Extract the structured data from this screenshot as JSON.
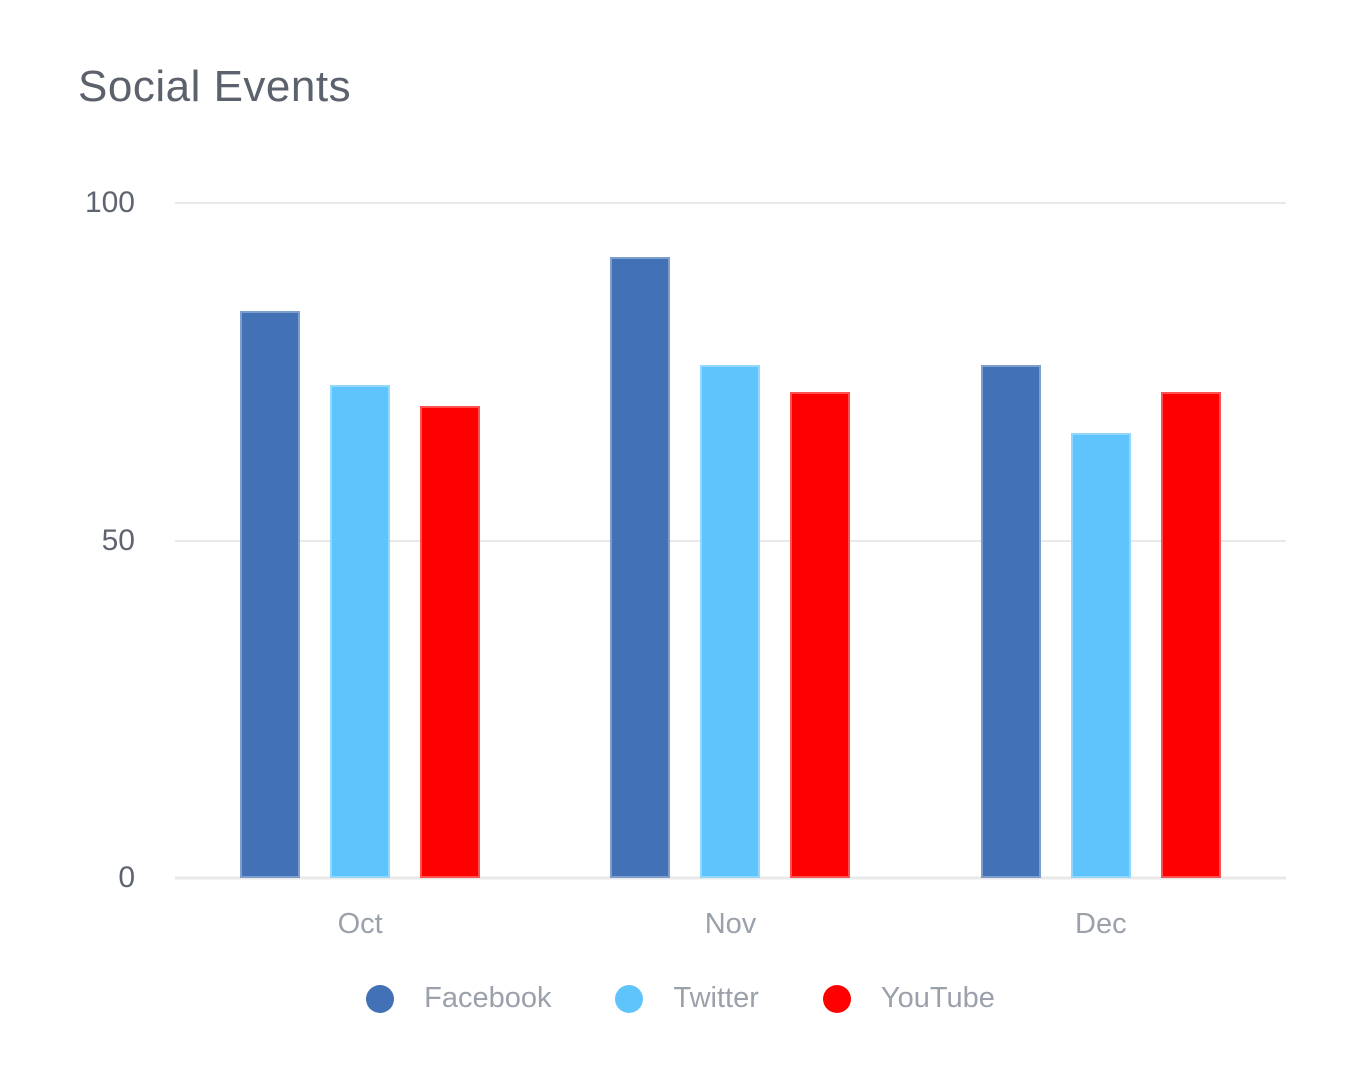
{
  "chart_data": {
    "type": "bar",
    "title": "Social Events",
    "categories": [
      "Oct",
      "Nov",
      "Dec"
    ],
    "series": [
      {
        "name": "Facebook",
        "color": "#4271B6",
        "values": [
          84,
          92,
          76
        ]
      },
      {
        "name": "Twitter",
        "color": "#5FC4FC",
        "values": [
          73,
          76,
          66
        ]
      },
      {
        "name": "YouTube",
        "color": "#FE0000",
        "values": [
          70,
          72,
          72
        ]
      }
    ],
    "xlabel": "",
    "ylabel": "",
    "ylim": [
      0,
      100
    ],
    "yticks": [
      0,
      50,
      100
    ],
    "grid": true,
    "legend_position": "bottom"
  },
  "colors": {
    "title_color": "#5b616d",
    "axis_label_color": "#5f6570",
    "x_label_color": "#9ba1ab",
    "legend_label_color": "#9ba1ab",
    "gridline_color": "#e9e9e9"
  }
}
